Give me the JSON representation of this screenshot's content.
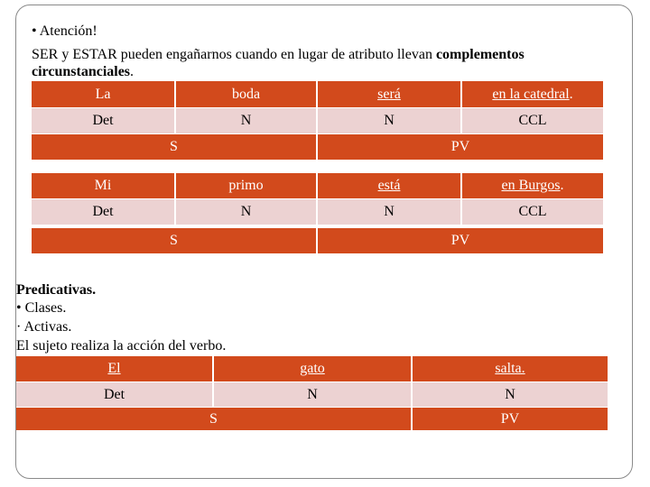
{
  "intro": {
    "bullet": "• Atención!",
    "line2_plain": "SER y ESTAR pueden engañarnos cuando en lugar de atributo llevan ",
    "line2_bold": "complementos",
    "line3_bold": "circunstanciales",
    "line3_end": "."
  },
  "table1": {
    "row1": [
      "La",
      "boda",
      "será",
      "en la catedral",
      "."
    ],
    "row2": [
      "Det",
      "N",
      "N",
      "CCL"
    ],
    "row3": [
      "S",
      "PV"
    ]
  },
  "table2": {
    "row1": [
      "Mi",
      "primo",
      "está",
      "en Burgos",
      "."
    ],
    "row2": [
      "Det",
      "N",
      "N",
      "CCL"
    ],
    "row3": [
      "S",
      "PV"
    ]
  },
  "section2": {
    "heading": "Predicativas.",
    "line1": "• Clases.",
    "line2": "· Activas.",
    "line3": "El sujeto realiza la acción del verbo."
  },
  "table3": {
    "row1": [
      "El",
      "gato",
      "salta."
    ],
    "row2": [
      "Det",
      "N",
      "N"
    ],
    "row3": [
      "S",
      "PV"
    ]
  },
  "colors": {
    "orange": "#d24a1c",
    "pink": "#ecd2d2"
  }
}
